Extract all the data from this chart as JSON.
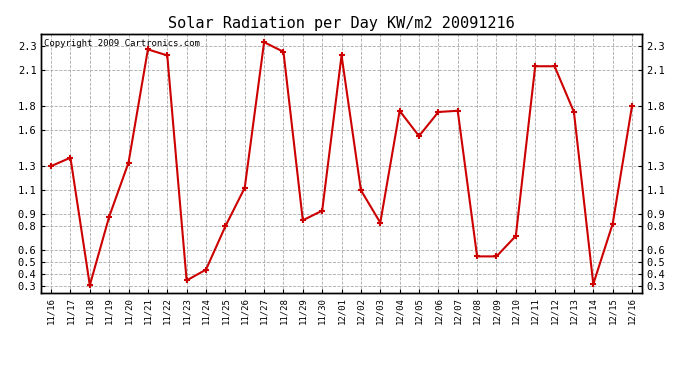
{
  "title": "Solar Radiation per Day KW/m2 20091216",
  "copyright": "Copyright 2009 Cartronics.com",
  "labels": [
    "11/16",
    "11/17",
    "11/18",
    "11/19",
    "11/20",
    "11/21",
    "11/22",
    "11/23",
    "11/24",
    "11/25",
    "11/26",
    "11/27",
    "11/28",
    "11/29",
    "11/30",
    "12/01",
    "12/02",
    "12/03",
    "12/04",
    "12/05",
    "12/06",
    "12/07",
    "12/08",
    "12/09",
    "12/10",
    "12/11",
    "12/12",
    "12/13",
    "12/14",
    "12/15",
    "12/16"
  ],
  "values": [
    1.3,
    1.37,
    0.31,
    0.88,
    1.33,
    2.27,
    2.22,
    0.35,
    0.44,
    0.8,
    1.12,
    2.33,
    2.25,
    0.85,
    0.93,
    2.22,
    1.1,
    0.83,
    1.76,
    1.55,
    1.75,
    1.76,
    0.55,
    0.55,
    0.72,
    2.13,
    2.13,
    1.75,
    0.32,
    0.82,
    1.8
  ],
  "line_color": "#cc0000",
  "marker_color": "#cc0000",
  "bg_color": "#ffffff",
  "grid_color": "#aaaaaa",
  "yticks": [
    0.3,
    0.4,
    0.5,
    0.6,
    0.8,
    0.9,
    1.1,
    1.3,
    1.6,
    1.8,
    2.1,
    2.3
  ],
  "ytick_labels": [
    "0.3",
    "0.4",
    "0.5",
    "0.6",
    "0.8",
    "0.9",
    "1.1",
    "1.3",
    "1.6",
    "1.8",
    "2.1",
    "2.3"
  ],
  "ymin": 0.25,
  "ymax": 2.4
}
